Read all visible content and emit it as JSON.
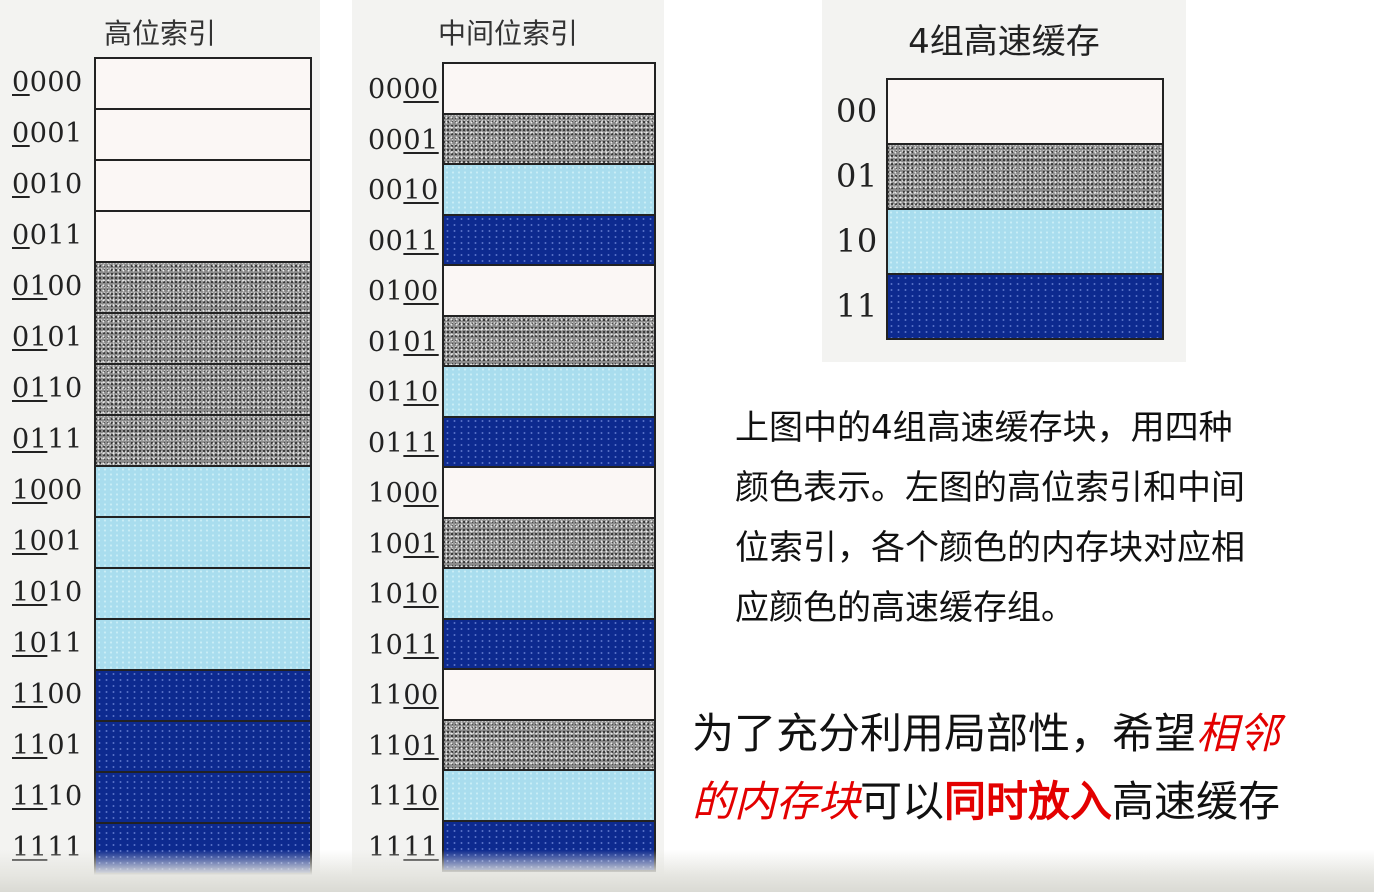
{
  "left_panel": {
    "title": "高位索引",
    "rows": [
      {
        "pre": "",
        "u": "0",
        "post": "000",
        "color": "white"
      },
      {
        "pre": "",
        "u": "0",
        "post": "001",
        "color": "white"
      },
      {
        "pre": "",
        "u": "0",
        "post": "010",
        "color": "white"
      },
      {
        "pre": "",
        "u": "0",
        "post": "011",
        "color": "white"
      },
      {
        "pre": "",
        "u": "01",
        "post": "00",
        "color": "gray"
      },
      {
        "pre": "",
        "u": "01",
        "post": "01",
        "color": "gray"
      },
      {
        "pre": "",
        "u": "01",
        "post": "10",
        "color": "gray"
      },
      {
        "pre": "",
        "u": "01",
        "post": "11",
        "color": "gray"
      },
      {
        "pre": "",
        "u": "10",
        "post": "00",
        "color": "light"
      },
      {
        "pre": "",
        "u": "10",
        "post": "01",
        "color": "light"
      },
      {
        "pre": "",
        "u": "10",
        "post": "10",
        "color": "light"
      },
      {
        "pre": "",
        "u": "10",
        "post": "11",
        "color": "light"
      },
      {
        "pre": "",
        "u": "11",
        "post": "00",
        "color": "navy"
      },
      {
        "pre": "",
        "u": "11",
        "post": "01",
        "color": "navy"
      },
      {
        "pre": "",
        "u": "11",
        "post": "10",
        "color": "navy"
      },
      {
        "pre": "",
        "u": "11",
        "post": "11",
        "color": "navy"
      }
    ]
  },
  "middle_panel": {
    "title": "中间位索引",
    "rows": [
      {
        "pre": "00",
        "u": "00",
        "post": "",
        "color": "white"
      },
      {
        "pre": "00",
        "u": "01",
        "post": "",
        "color": "gray"
      },
      {
        "pre": "00",
        "u": "10",
        "post": "",
        "color": "light"
      },
      {
        "pre": "00",
        "u": "11",
        "post": "",
        "color": "navy"
      },
      {
        "pre": "01",
        "u": "00",
        "post": "",
        "color": "white"
      },
      {
        "pre": "01",
        "u": "01",
        "post": "",
        "color": "gray"
      },
      {
        "pre": "01",
        "u": "10",
        "post": "",
        "color": "light"
      },
      {
        "pre": "01",
        "u": "11",
        "post": "",
        "color": "navy"
      },
      {
        "pre": "10",
        "u": "00",
        "post": "",
        "color": "white"
      },
      {
        "pre": "10",
        "u": "01",
        "post": "",
        "color": "gray"
      },
      {
        "pre": "10",
        "u": "10",
        "post": "",
        "color": "light"
      },
      {
        "pre": "10",
        "u": "11",
        "post": "",
        "color": "navy"
      },
      {
        "pre": "11",
        "u": "00",
        "post": "",
        "color": "white"
      },
      {
        "pre": "11",
        "u": "01",
        "post": "",
        "color": "gray"
      },
      {
        "pre": "11",
        "u": "10",
        "post": "",
        "color": "light"
      },
      {
        "pre": "11",
        "u": "11",
        "post": "",
        "color": "navy"
      }
    ]
  },
  "cache_panel": {
    "title": "4组高速缓存",
    "rows": [
      {
        "label": "00",
        "color": "white"
      },
      {
        "label": "01",
        "color": "gray"
      },
      {
        "label": "10",
        "color": "light"
      },
      {
        "label": "11",
        "color": "navy"
      }
    ]
  },
  "explanation": {
    "lines": [
      "上图中的4组高速缓存块，用四种",
      "颜色表示。左图的高位索引和中间",
      "位索引，各个颜色的内存块对应相",
      "应颜色的高速缓存组。"
    ]
  },
  "conclusion": {
    "line1_plain": "为了充分利用局部性，希望",
    "line1_red": "相邻",
    "line2_red_italic": "的内存块",
    "line2_plain1": "可以",
    "line2_red_bold": "同时放入",
    "line2_plain2": "高速缓存"
  },
  "colors": {
    "white": "#fbf7f5",
    "gray": "#8b8b8b",
    "light": "#a9ddee",
    "navy": "#0d2a8f",
    "red": "#e30000"
  }
}
